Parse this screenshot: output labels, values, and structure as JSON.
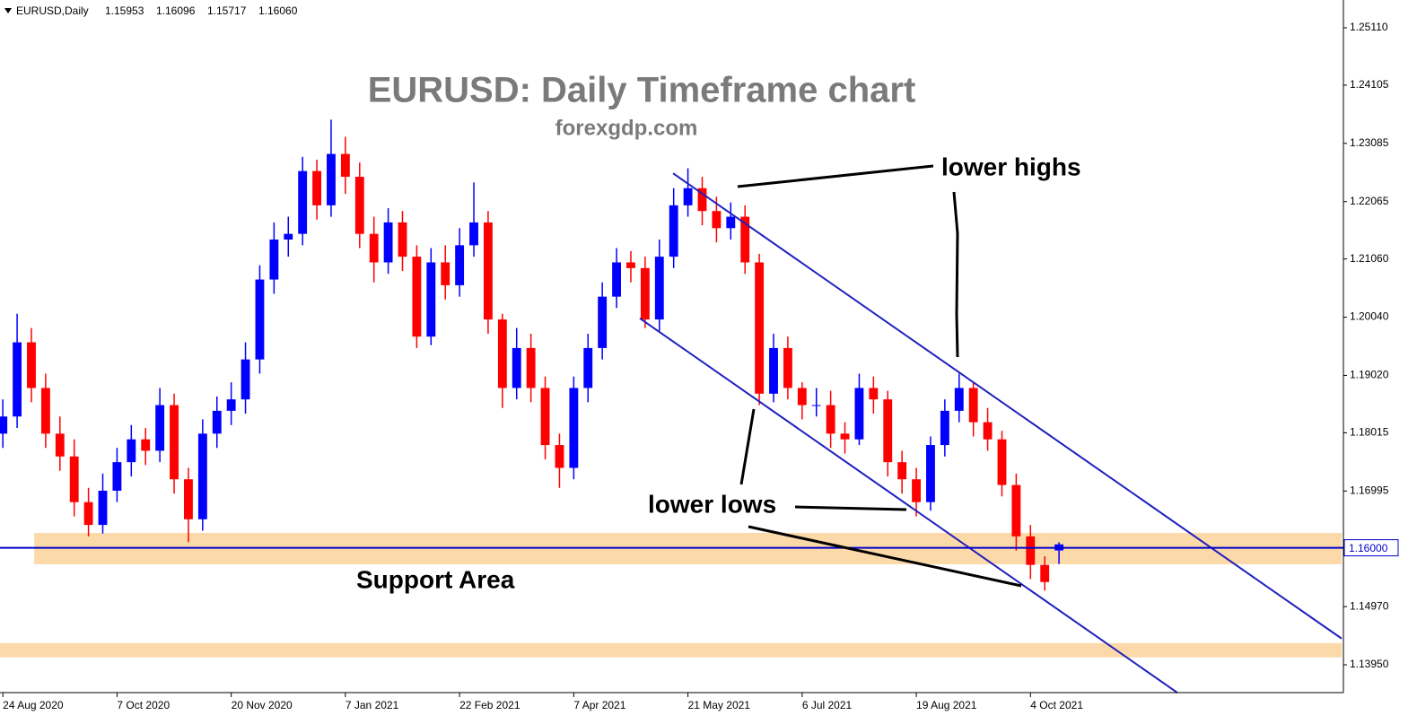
{
  "header": {
    "symbol": "EURUSD,Daily",
    "ohlc": [
      "1.15953",
      "1.16096",
      "1.15717",
      "1.16060"
    ]
  },
  "chart_data": {
    "type": "candlestick",
    "title": "EURUSD: Daily Timeframe chart",
    "subtitle": "forexgdp.com",
    "bull_color": "#0000ff",
    "bear_color": "#ff0000",
    "xlim": [
      -0.2,
      93.8
    ],
    "ylim": [
      1.13463,
      1.25597
    ],
    "xticks": [
      {
        "value": 0,
        "label": "24 Aug 2020"
      },
      {
        "value": 8,
        "label": "7 Oct 2020"
      },
      {
        "value": 16,
        "label": "20 Nov 2020"
      },
      {
        "value": 24,
        "label": "7 Jan 2021"
      },
      {
        "value": 32,
        "label": "22 Feb 2021"
      },
      {
        "value": 40,
        "label": "7 Apr 2021"
      },
      {
        "value": 48,
        "label": "21 May 2021"
      },
      {
        "value": 56,
        "label": "6 Jul 2021"
      },
      {
        "value": 64,
        "label": "19 Aug 2021"
      },
      {
        "value": 72,
        "label": "4 Oct 2021"
      }
    ],
    "yticks": [
      {
        "value": 1.2511,
        "label": "1.25110"
      },
      {
        "value": 1.24105,
        "label": "1.24105"
      },
      {
        "value": 1.23085,
        "label": "1.23085"
      },
      {
        "value": 1.22065,
        "label": "1.22065"
      },
      {
        "value": 1.2106,
        "label": "1.21060"
      },
      {
        "value": 1.2004,
        "label": "1.20040"
      },
      {
        "value": 1.1902,
        "label": "1.19020"
      },
      {
        "value": 1.18015,
        "label": "1.18015"
      },
      {
        "value": 1.16995,
        "label": "1.16995"
      },
      {
        "value": 1.1497,
        "label": "1.14970"
      },
      {
        "value": 1.1395,
        "label": "1.13950"
      }
    ],
    "open": [
      1.18,
      1.183,
      1.196,
      1.188,
      1.18,
      1.176,
      1.168,
      1.164,
      1.17,
      1.175,
      1.179,
      1.177,
      1.185,
      1.172,
      1.165,
      1.18,
      1.184,
      1.186,
      1.193,
      1.207,
      1.214,
      1.215,
      1.226,
      1.22,
      1.229,
      1.225,
      1.215,
      1.21,
      1.217,
      1.211,
      1.197,
      1.21,
      1.206,
      1.213,
      1.217,
      1.2,
      1.188,
      1.195,
      1.188,
      1.178,
      1.174,
      1.188,
      1.195,
      1.204,
      1.21,
      1.209,
      1.2,
      1.211,
      1.22,
      1.223,
      1.219,
      1.216,
      1.218,
      1.21,
      1.187,
      1.195,
      1.188,
      1.185,
      1.185,
      1.18,
      1.179,
      1.188,
      1.186,
      1.175,
      1.172,
      1.168,
      1.178,
      1.184,
      1.188,
      1.182,
      1.179,
      1.171,
      1.162,
      1.157,
      1.15953
    ],
    "high": [
      1.186,
      1.201,
      1.1985,
      1.1905,
      1.183,
      1.179,
      1.1705,
      1.173,
      1.1775,
      1.1815,
      1.181,
      1.188,
      1.187,
      1.174,
      1.1825,
      1.1865,
      1.189,
      1.196,
      1.2095,
      1.217,
      1.218,
      1.2285,
      1.228,
      1.235,
      1.232,
      1.2275,
      1.218,
      1.2195,
      1.219,
      1.213,
      1.2125,
      1.213,
      1.216,
      1.224,
      1.219,
      1.201,
      1.1985,
      1.1975,
      1.19,
      1.18,
      1.19,
      1.1975,
      1.2065,
      1.2125,
      1.212,
      1.211,
      1.214,
      1.223,
      1.2265,
      1.225,
      1.2215,
      1.2205,
      1.22,
      1.2115,
      1.1975,
      1.197,
      1.189,
      1.188,
      1.1875,
      1.182,
      1.1905,
      1.19,
      1.1875,
      1.177,
      1.174,
      1.1795,
      1.186,
      1.1905,
      1.189,
      1.1845,
      1.1805,
      1.173,
      1.164,
      1.1585,
      1.16096
    ],
    "low": [
      1.1775,
      1.181,
      1.1855,
      1.1775,
      1.1735,
      1.1655,
      1.162,
      1.1625,
      1.168,
      1.1725,
      1.1745,
      1.175,
      1.1695,
      1.161,
      1.163,
      1.1775,
      1.1815,
      1.1835,
      1.1905,
      1.2045,
      1.211,
      1.213,
      1.2175,
      1.218,
      1.222,
      1.2125,
      1.2065,
      1.208,
      1.2085,
      1.195,
      1.1955,
      1.2035,
      1.204,
      1.211,
      1.1975,
      1.1845,
      1.186,
      1.1855,
      1.1755,
      1.1705,
      1.172,
      1.1855,
      1.193,
      1.202,
      1.2065,
      1.1985,
      1.198,
      1.209,
      1.218,
      1.2165,
      1.2135,
      1.214,
      1.208,
      1.185,
      1.1855,
      1.186,
      1.1825,
      1.183,
      1.1775,
      1.1765,
      1.178,
      1.1835,
      1.1725,
      1.1695,
      1.1655,
      1.1665,
      1.176,
      1.182,
      1.1795,
      1.177,
      1.169,
      1.1595,
      1.1545,
      1.1525,
      1.15717
    ],
    "close": [
      1.183,
      1.196,
      1.188,
      1.18,
      1.176,
      1.168,
      1.164,
      1.17,
      1.175,
      1.179,
      1.177,
      1.185,
      1.172,
      1.165,
      1.18,
      1.184,
      1.186,
      1.193,
      1.207,
      1.214,
      1.215,
      1.226,
      1.22,
      1.229,
      1.225,
      1.215,
      1.21,
      1.217,
      1.211,
      1.197,
      1.21,
      1.206,
      1.213,
      1.217,
      1.2,
      1.188,
      1.195,
      1.188,
      1.178,
      1.174,
      1.188,
      1.195,
      1.204,
      1.21,
      1.209,
      1.2,
      1.211,
      1.22,
      1.223,
      1.219,
      1.216,
      1.218,
      1.21,
      1.187,
      1.195,
      1.188,
      1.185,
      1.185,
      1.18,
      1.179,
      1.188,
      1.186,
      1.175,
      1.172,
      1.168,
      1.178,
      1.184,
      1.188,
      1.182,
      1.179,
      1.171,
      1.162,
      1.157,
      1.154,
      1.1606
    ],
    "price_line": {
      "value": 1.16,
      "label": "1.16000",
      "color": "#0000cc"
    },
    "zones": [
      {
        "from": 2.2,
        "to": 93.8,
        "low": 1.15711,
        "high": 1.1626,
        "color": "#fcd9a8"
      },
      {
        "from": -0.2,
        "to": 93.8,
        "low": 1.1408,
        "high": 1.1433,
        "color": "#fcd9a8"
      }
    ],
    "channel": [
      {
        "x": [
          46.96,
          93.8
        ],
        "y": [
          1.2256,
          1.1441
        ]
      },
      {
        "x": [
          44.63,
          82.3
        ],
        "y": [
          1.2002,
          1.1346
        ]
      }
    ],
    "channel_color": "#1f1fbf",
    "annotations": [
      "lower highs",
      "lower lows",
      "Support Area"
    ]
  }
}
